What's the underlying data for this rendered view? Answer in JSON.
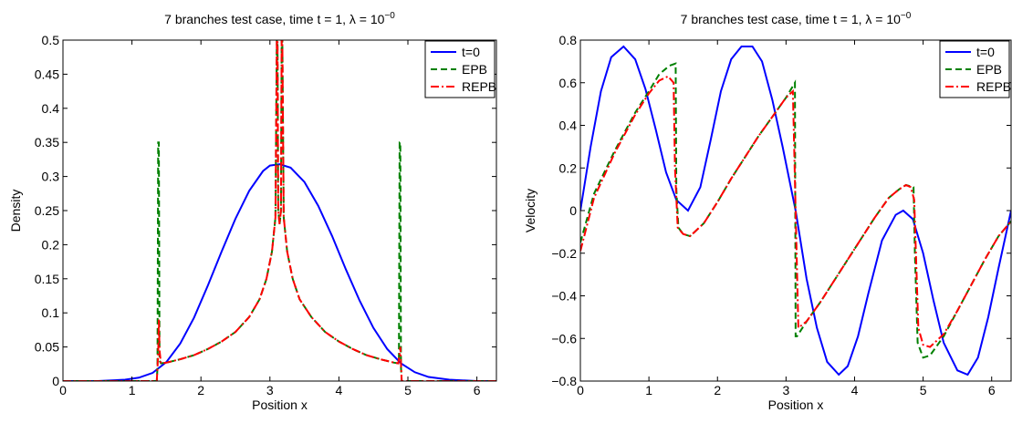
{
  "chart_data": [
    {
      "type": "line",
      "title": "7 branches test case, time t = 1, λ = 10",
      "title_exponent": "−0",
      "xlabel": "Position x",
      "ylabel": "Density",
      "xlim": [
        0,
        6.2832
      ],
      "ylim": [
        0,
        0.5
      ],
      "xticks": [
        0,
        1,
        2,
        3,
        4,
        5,
        6
      ],
      "xtick_labels": [
        "0",
        "1",
        "2",
        "3",
        "4",
        "5",
        "6"
      ],
      "yticks": [
        0,
        0.05,
        0.1,
        0.15,
        0.2,
        0.25,
        0.3,
        0.35,
        0.4,
        0.45,
        0.5
      ],
      "ytick_labels": [
        "0",
        "0.05",
        "0.1",
        "0.15",
        "0.2",
        "0.25",
        "0.3",
        "0.35",
        "0.4",
        "0.45",
        "0.5"
      ],
      "grid": false,
      "legend_position": "top-right",
      "series": [
        {
          "name": "t=0",
          "color": "#0000ff",
          "style": "solid",
          "x": [
            0,
            0.5,
            0.9,
            1.1,
            1.3,
            1.5,
            1.7,
            1.9,
            2.1,
            2.3,
            2.5,
            2.7,
            2.9,
            3.0,
            3.14,
            3.3,
            3.5,
            3.7,
            3.9,
            4.1,
            4.3,
            4.5,
            4.7,
            4.9,
            5.1,
            5.3,
            5.6,
            6.0,
            6.2832
          ],
          "y": [
            0,
            0,
            0.002,
            0.005,
            0.012,
            0.028,
            0.055,
            0.093,
            0.14,
            0.19,
            0.238,
            0.279,
            0.308,
            0.316,
            0.318,
            0.313,
            0.292,
            0.257,
            0.213,
            0.164,
            0.118,
            0.078,
            0.047,
            0.026,
            0.013,
            0.006,
            0.002,
            0,
            0
          ]
        },
        {
          "name": "EPB",
          "color": "#008000",
          "style": "dashed",
          "x": [
            0,
            1.36,
            1.37,
            1.38,
            1.39,
            1.4,
            1.42,
            1.5,
            1.7,
            1.9,
            2.1,
            2.3,
            2.5,
            2.7,
            2.85,
            2.95,
            3.03,
            3.08,
            3.1,
            3.11,
            3.12,
            3.14,
            3.16,
            3.17,
            3.18,
            3.2,
            3.25,
            3.33,
            3.43,
            3.6,
            3.8,
            4.0,
            4.2,
            4.4,
            4.6,
            4.8,
            4.86,
            4.87,
            4.88,
            4.89,
            4.9,
            4.91,
            5.0,
            6.2832
          ],
          "y": [
            0,
            0,
            0.02,
            0.35,
            0.35,
            0.03,
            0.026,
            0.027,
            0.032,
            0.038,
            0.047,
            0.058,
            0.072,
            0.094,
            0.12,
            0.15,
            0.19,
            0.24,
            0.5,
            0.5,
            0.25,
            0.23,
            0.25,
            0.5,
            0.5,
            0.24,
            0.19,
            0.15,
            0.12,
            0.094,
            0.072,
            0.058,
            0.047,
            0.038,
            0.032,
            0.027,
            0.026,
            0.03,
            0.35,
            0.35,
            0.02,
            0,
            0,
            0
          ]
        },
        {
          "name": "REPB",
          "color": "#ff0000",
          "style": "dashdot",
          "x": [
            0,
            1.36,
            1.38,
            1.39,
            1.4,
            1.42,
            1.5,
            1.7,
            1.9,
            2.1,
            2.3,
            2.5,
            2.7,
            2.85,
            2.95,
            3.03,
            3.08,
            3.1,
            3.11,
            3.12,
            3.14,
            3.16,
            3.17,
            3.18,
            3.2,
            3.25,
            3.33,
            3.43,
            3.6,
            3.8,
            4.0,
            4.2,
            4.4,
            4.6,
            4.8,
            4.86,
            4.88,
            4.89,
            4.91,
            5.0,
            6.2832
          ],
          "y": [
            0,
            0,
            0.04,
            0.09,
            0.045,
            0.026,
            0.027,
            0.032,
            0.038,
            0.047,
            0.058,
            0.072,
            0.094,
            0.12,
            0.15,
            0.19,
            0.24,
            0.5,
            0.5,
            0.25,
            0.23,
            0.25,
            0.5,
            0.5,
            0.24,
            0.19,
            0.15,
            0.12,
            0.094,
            0.072,
            0.058,
            0.047,
            0.038,
            0.032,
            0.027,
            0.026,
            0.04,
            0.05,
            0,
            0,
            0
          ]
        }
      ]
    },
    {
      "type": "line",
      "title": "7 branches test case, time t = 1, λ = 10",
      "title_exponent": "−0",
      "xlabel": "Position x",
      "ylabel": "Velocity",
      "xlim": [
        0,
        6.2832
      ],
      "ylim": [
        -0.8,
        0.8
      ],
      "xticks": [
        0,
        1,
        2,
        3,
        4,
        5,
        6
      ],
      "xtick_labels": [
        "0",
        "1",
        "2",
        "3",
        "4",
        "5",
        "6"
      ],
      "yticks": [
        -0.8,
        -0.6,
        -0.4,
        -0.2,
        0,
        0.2,
        0.4,
        0.6,
        0.8
      ],
      "ytick_labels": [
        "−0.8",
        "−0.6",
        "−0.4",
        "−0.2",
        "0",
        "0.2",
        "0.4",
        "0.6",
        "0.8"
      ],
      "grid": false,
      "legend_position": "top-right",
      "series": [
        {
          "name": "t=0",
          "color": "#0000ff",
          "style": "solid",
          "x": [
            0,
            0.15,
            0.3,
            0.45,
            0.63,
            0.8,
            0.95,
            1.1,
            1.25,
            1.4,
            1.57,
            1.75,
            1.9,
            2.05,
            2.2,
            2.35,
            2.51,
            2.65,
            2.8,
            2.95,
            3.14,
            3.3,
            3.45,
            3.6,
            3.77,
            3.9,
            4.05,
            4.2,
            4.4,
            4.6,
            4.71,
            4.85,
            5.0,
            5.15,
            5.3,
            5.5,
            5.65,
            5.8,
            5.95,
            6.1,
            6.2832
          ],
          "y": [
            0,
            0.3,
            0.56,
            0.72,
            0.77,
            0.71,
            0.57,
            0.38,
            0.18,
            0.05,
            0,
            0.11,
            0.33,
            0.56,
            0.71,
            0.77,
            0.77,
            0.7,
            0.52,
            0.3,
            0,
            -0.32,
            -0.55,
            -0.71,
            -0.77,
            -0.73,
            -0.59,
            -0.39,
            -0.14,
            -0.02,
            0,
            -0.04,
            -0.2,
            -0.42,
            -0.62,
            -0.75,
            -0.77,
            -0.69,
            -0.5,
            -0.27,
            0
          ]
        },
        {
          "name": "EPB",
          "color": "#008000",
          "style": "dashed",
          "x": [
            0,
            0.2,
            0.5,
            0.8,
            1.0,
            1.15,
            1.3,
            1.39,
            1.4,
            1.43,
            1.5,
            1.6,
            1.8,
            2.0,
            2.2,
            2.4,
            2.6,
            2.8,
            3.0,
            3.13,
            3.14,
            3.16,
            3.3,
            3.5,
            3.7,
            3.9,
            4.1,
            4.3,
            4.5,
            4.65,
            4.75,
            4.86,
            4.88,
            4.92,
            5.0,
            5.1,
            5.3,
            5.5,
            5.7,
            5.9,
            6.1,
            6.2832
          ],
          "y": [
            -0.15,
            0.08,
            0.28,
            0.46,
            0.56,
            0.64,
            0.68,
            0.69,
            0.1,
            -0.08,
            -0.11,
            -0.12,
            -0.06,
            0.04,
            0.15,
            0.25,
            0.35,
            0.44,
            0.53,
            0.6,
            -0.59,
            -0.59,
            -0.52,
            -0.43,
            -0.33,
            -0.23,
            -0.13,
            -0.03,
            0.06,
            0.1,
            0.12,
            0.11,
            -0.2,
            -0.62,
            -0.69,
            -0.68,
            -0.59,
            -0.47,
            -0.35,
            -0.23,
            -0.12,
            -0.05
          ]
        },
        {
          "name": "REPB",
          "color": "#ff0000",
          "style": "dashdot",
          "x": [
            0,
            0.2,
            0.5,
            0.8,
            1.0,
            1.15,
            1.28,
            1.36,
            1.38,
            1.42,
            1.5,
            1.6,
            1.8,
            2.0,
            2.2,
            2.4,
            2.6,
            2.8,
            3.0,
            3.1,
            3.14,
            3.18,
            3.3,
            3.5,
            3.7,
            3.9,
            4.1,
            4.3,
            4.5,
            4.65,
            4.75,
            4.82,
            4.87,
            4.93,
            5.0,
            5.1,
            5.3,
            5.5,
            5.7,
            5.9,
            6.1,
            6.2832
          ],
          "y": [
            -0.19,
            0.06,
            0.27,
            0.45,
            0.55,
            0.61,
            0.63,
            0.6,
            0.2,
            -0.08,
            -0.11,
            -0.12,
            -0.06,
            0.04,
            0.15,
            0.25,
            0.35,
            0.44,
            0.53,
            0.56,
            0,
            -0.55,
            -0.52,
            -0.43,
            -0.33,
            -0.23,
            -0.13,
            -0.03,
            0.06,
            0.1,
            0.12,
            0.11,
            0.05,
            -0.55,
            -0.63,
            -0.64,
            -0.58,
            -0.47,
            -0.35,
            -0.23,
            -0.12,
            -0.05
          ]
        }
      ]
    }
  ]
}
